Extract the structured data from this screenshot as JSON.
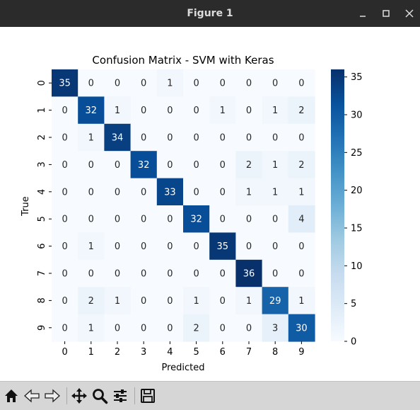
{
  "window": {
    "title": "Figure 1"
  },
  "toolbar": {
    "icons": [
      "home-icon",
      "back-icon",
      "forward-icon",
      "pan-icon",
      "zoom-icon",
      "configure-subplots-icon",
      "save-icon"
    ]
  },
  "colors": {
    "low": "#f7fbff",
    "high": "#08306b"
  },
  "chart_data": {
    "type": "heatmap",
    "title": "Confusion Matrix - SVM with Keras",
    "xlabel": "Predicted",
    "ylabel": "True",
    "x_ticks": [
      "0",
      "1",
      "2",
      "3",
      "4",
      "5",
      "6",
      "7",
      "8",
      "9"
    ],
    "y_ticks": [
      "0",
      "1",
      "2",
      "3",
      "4",
      "5",
      "6",
      "7",
      "8",
      "9"
    ],
    "matrix": [
      [
        35,
        0,
        0,
        0,
        1,
        0,
        0,
        0,
        0,
        0
      ],
      [
        0,
        32,
        1,
        0,
        0,
        0,
        1,
        0,
        1,
        2
      ],
      [
        0,
        1,
        34,
        0,
        0,
        0,
        0,
        0,
        0,
        0
      ],
      [
        0,
        0,
        0,
        32,
        0,
        0,
        0,
        2,
        1,
        2
      ],
      [
        0,
        0,
        0,
        0,
        33,
        0,
        0,
        1,
        1,
        1
      ],
      [
        0,
        0,
        0,
        0,
        0,
        32,
        0,
        0,
        0,
        4
      ],
      [
        0,
        1,
        0,
        0,
        0,
        0,
        35,
        0,
        0,
        0
      ],
      [
        0,
        0,
        0,
        0,
        0,
        0,
        0,
        36,
        0,
        0
      ],
      [
        0,
        2,
        1,
        0,
        0,
        1,
        0,
        1,
        29,
        1
      ],
      [
        0,
        1,
        0,
        0,
        0,
        2,
        0,
        0,
        3,
        30
      ]
    ],
    "vmin": 0,
    "vmax": 36,
    "colorbar_ticks": [
      0,
      5,
      10,
      15,
      20,
      25,
      30,
      35
    ],
    "colormap": "Blues"
  }
}
